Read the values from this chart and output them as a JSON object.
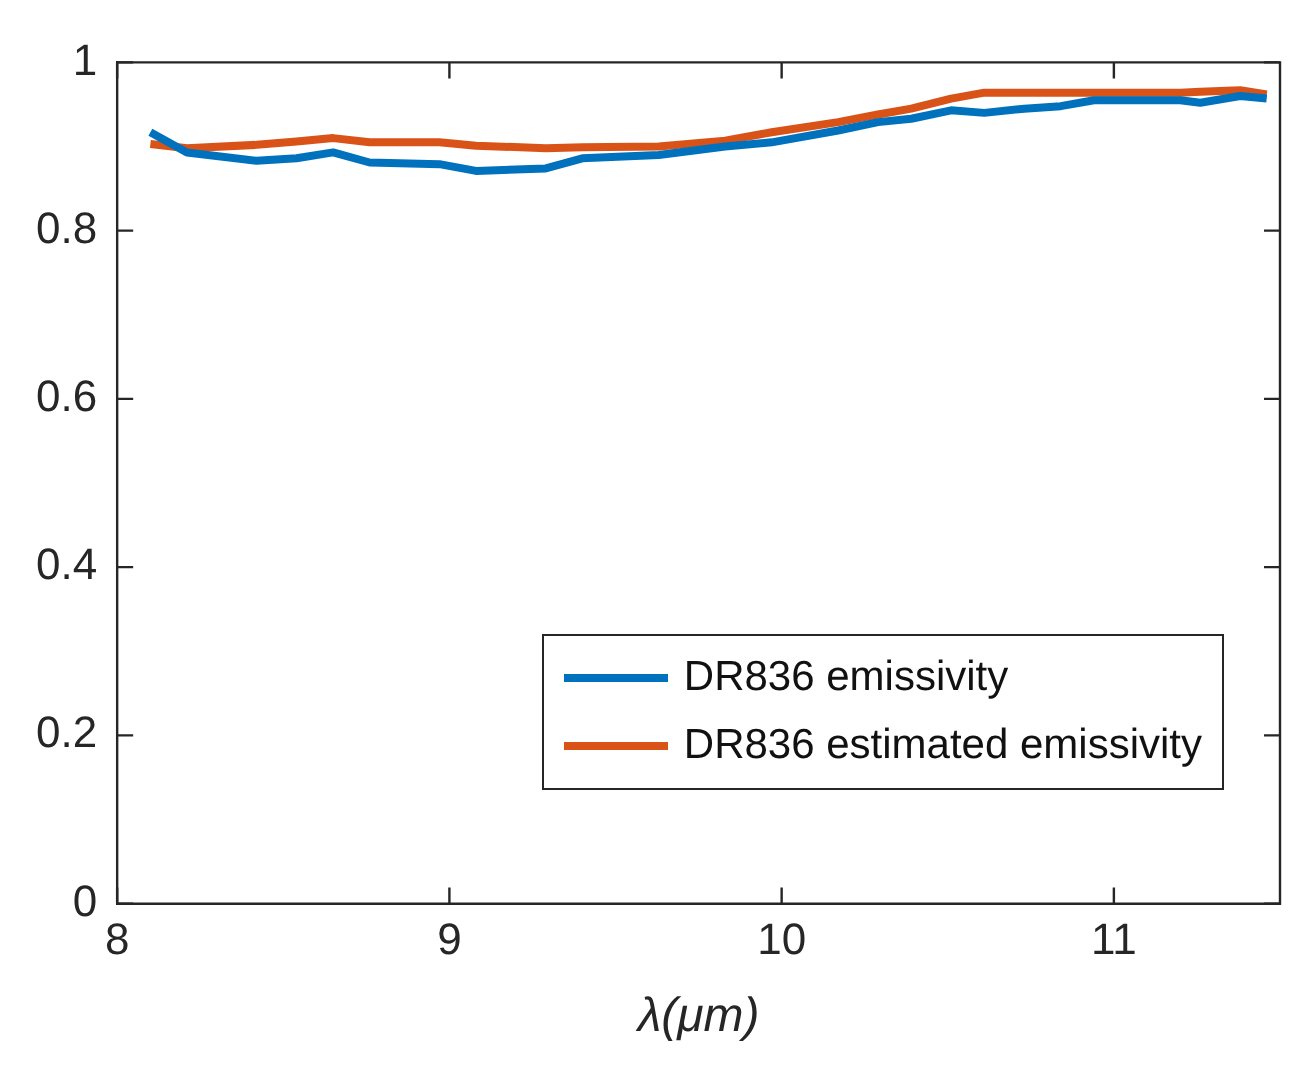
{
  "chart_data": {
    "type": "line",
    "xlabel": "λ(μm)",
    "xlim": [
      8,
      11.5
    ],
    "xticks": [
      8,
      9,
      10,
      11
    ],
    "ylim": [
      0,
      1
    ],
    "yticks": [
      0,
      0.2,
      0.4,
      0.6,
      0.8,
      1
    ],
    "grid": false,
    "legend": "bottom right",
    "marker": "none",
    "line_style": "solid",
    "x": [
      8.1,
      8.21,
      8.42,
      8.54,
      8.65,
      8.76,
      8.97,
      9.08,
      9.29,
      9.4,
      9.63,
      9.83,
      9.97,
      10.17,
      10.29,
      10.39,
      10.51,
      10.61,
      10.73,
      10.84,
      10.94,
      11.2,
      11.26,
      11.38,
      11.46
    ],
    "series": [
      {
        "name": "DR836 emissivity",
        "color": "#0072bd",
        "values": [
          0.917,
          0.893,
          0.883,
          0.886,
          0.893,
          0.881,
          0.879,
          0.871,
          0.874,
          0.886,
          0.89,
          0.9,
          0.905,
          0.919,
          0.929,
          0.933,
          0.943,
          0.94,
          0.945,
          0.948,
          0.955,
          0.955,
          0.952,
          0.96,
          0.957
        ]
      },
      {
        "name": "DR836 estimated emissivity",
        "color": "#d95319",
        "values": [
          0.903,
          0.898,
          0.902,
          0.906,
          0.91,
          0.905,
          0.905,
          0.901,
          0.898,
          0.899,
          0.9,
          0.907,
          0.917,
          0.929,
          0.938,
          0.945,
          0.957,
          0.964,
          0.964,
          0.964,
          0.964,
          0.964,
          0.965,
          0.967,
          0.962
        ]
      }
    ]
  }
}
